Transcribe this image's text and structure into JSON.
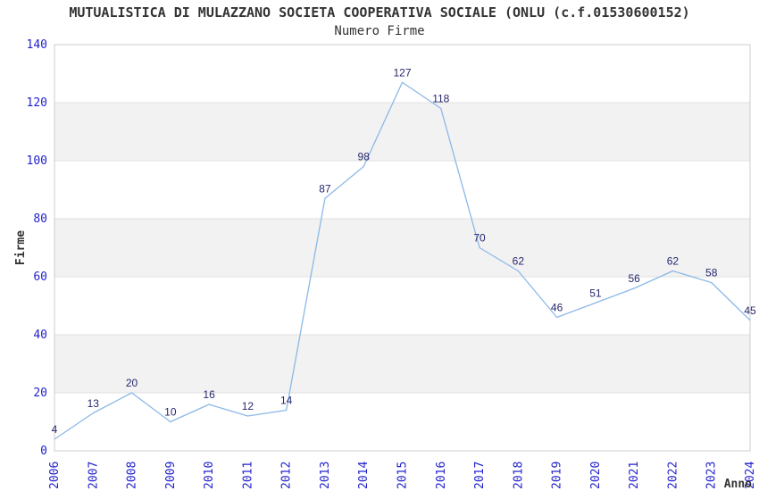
{
  "chart_data": {
    "type": "line",
    "title": "MUTUALISTICA DI MULAZZANO SOCIETA COOPERATIVA SOCIALE (ONLU (c.f.01530600152)",
    "subtitle": "Numero Firme",
    "xlabel": "Anno",
    "ylabel": "Firme",
    "categories": [
      "2006",
      "2007",
      "2008",
      "2009",
      "2010",
      "2011",
      "2012",
      "2013",
      "2014",
      "2015",
      "2016",
      "2017",
      "2018",
      "2019",
      "2020",
      "2021",
      "2022",
      "2023",
      "2024"
    ],
    "series": [
      {
        "name": "Numero Firme",
        "values": [
          4,
          13,
          20,
          10,
          16,
          12,
          14,
          87,
          98,
          127,
          118,
          70,
          62,
          46,
          51,
          56,
          62,
          58,
          45
        ]
      }
    ],
    "ylim": [
      0,
      140
    ],
    "yticks": [
      0,
      20,
      40,
      60,
      80,
      100,
      120,
      140
    ],
    "grid": true,
    "legend": false,
    "point_labels": true,
    "colors": {
      "line": "#8cb8e8",
      "tick_label": "#2222cc",
      "data_label": "#26266e",
      "band": "#f2f2f2",
      "grid": "#e0e0e0",
      "border": "#cccccc",
      "text": "#333333"
    }
  }
}
